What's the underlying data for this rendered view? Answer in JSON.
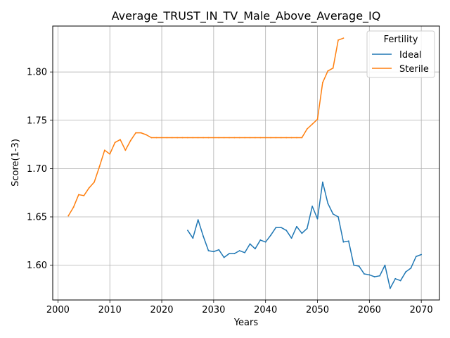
{
  "chart_data": {
    "type": "line",
    "title": "Average_TRUST_IN_TV_Male_Above_Average_IQ",
    "xlabel": "Years",
    "ylabel": "Score(1-3)",
    "xlim": [
      1999,
      2073.5
    ],
    "ylim": [
      1.564,
      1.8475
    ],
    "xticks": [
      2000,
      2010,
      2020,
      2030,
      2040,
      2050,
      2060,
      2070
    ],
    "xtick_labels": [
      "2000",
      "2010",
      "2020",
      "2030",
      "2040",
      "2050",
      "2060",
      "2070"
    ],
    "yticks": [
      1.6,
      1.65,
      1.7,
      1.75,
      1.8
    ],
    "ytick_labels": [
      "1.60",
      "1.65",
      "1.70",
      "1.75",
      "1.80"
    ],
    "grid": true,
    "legend": {
      "title": "Fertility",
      "placement": "top-right"
    },
    "series": [
      {
        "name": "Ideal",
        "color": "#1f77b4",
        "x": [
          2025,
          2026,
          2027,
          2028,
          2029,
          2030,
          2031,
          2032,
          2033,
          2034,
          2035,
          2036,
          2037,
          2038,
          2039,
          2040,
          2041,
          2042,
          2043,
          2044,
          2045,
          2046,
          2047,
          2048,
          2049,
          2050,
          2051,
          2052,
          2053,
          2054,
          2055,
          2056,
          2057,
          2058,
          2059,
          2060,
          2061,
          2062,
          2063,
          2064,
          2065,
          2066,
          2067,
          2068,
          2069,
          2070
        ],
        "y": [
          1.636,
          1.628,
          1.647,
          1.63,
          1.615,
          1.614,
          1.616,
          1.608,
          1.612,
          1.612,
          1.615,
          1.613,
          1.622,
          1.617,
          1.626,
          1.624,
          1.631,
          1.639,
          1.639,
          1.636,
          1.628,
          1.64,
          1.633,
          1.638,
          1.661,
          1.648,
          1.686,
          1.664,
          1.653,
          1.65,
          1.624,
          1.625,
          1.6,
          1.599,
          1.591,
          1.59,
          1.588,
          1.589,
          1.6,
          1.576,
          1.586,
          1.584,
          1.593,
          1.597,
          1.609,
          1.611
        ]
      },
      {
        "name": "Sterile",
        "color": "#ff7f0e",
        "x": [
          2002,
          2003,
          2004,
          2005,
          2006,
          2007,
          2008,
          2009,
          2010,
          2011,
          2012,
          2013,
          2014,
          2015,
          2016,
          2017,
          2018,
          2019,
          2020,
          2021,
          2022,
          2023,
          2024,
          2025,
          2026,
          2027,
          2028,
          2029,
          2030,
          2031,
          2032,
          2033,
          2034,
          2035,
          2036,
          2037,
          2038,
          2039,
          2040,
          2041,
          2042,
          2043,
          2044,
          2045,
          2046,
          2047,
          2048,
          2049,
          2050,
          2051,
          2052,
          2053,
          2054,
          2055
        ],
        "y": [
          1.651,
          1.66,
          1.673,
          1.672,
          1.68,
          1.686,
          1.702,
          1.719,
          1.715,
          1.727,
          1.73,
          1.719,
          1.729,
          1.737,
          1.737,
          1.735,
          1.732,
          1.732,
          1.732,
          1.732,
          1.732,
          1.732,
          1.732,
          1.732,
          1.732,
          1.732,
          1.732,
          1.732,
          1.732,
          1.732,
          1.732,
          1.732,
          1.732,
          1.732,
          1.732,
          1.732,
          1.732,
          1.732,
          1.732,
          1.732,
          1.732,
          1.732,
          1.732,
          1.732,
          1.732,
          1.732,
          1.741,
          1.746,
          1.751,
          1.789,
          1.801,
          1.804,
          1.833,
          1.835
        ]
      }
    ]
  }
}
